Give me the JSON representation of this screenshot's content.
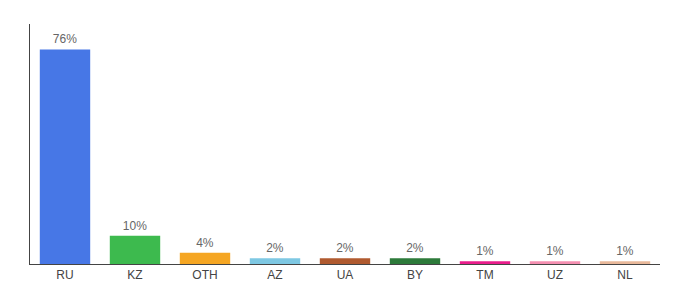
{
  "chart_data": {
    "type": "bar",
    "categories": [
      "RU",
      "KZ",
      "OTH",
      "AZ",
      "UA",
      "BY",
      "TM",
      "UZ",
      "NL"
    ],
    "values": [
      76,
      10,
      4,
      2,
      2,
      2,
      1,
      1,
      1
    ],
    "value_labels": [
      "76%",
      "10%",
      "4%",
      "2%",
      "2%",
      "2%",
      "1%",
      "1%",
      "1%"
    ],
    "colors": [
      "#4777e6",
      "#3dba4e",
      "#f5a623",
      "#7ec8e3",
      "#b05a2f",
      "#2d7a3a",
      "#e91e8c",
      "#f48fb1",
      "#e8b89a"
    ],
    "ylim": [
      0,
      85
    ],
    "data_labels": true,
    "tick_labels": "x",
    "grid": false
  }
}
